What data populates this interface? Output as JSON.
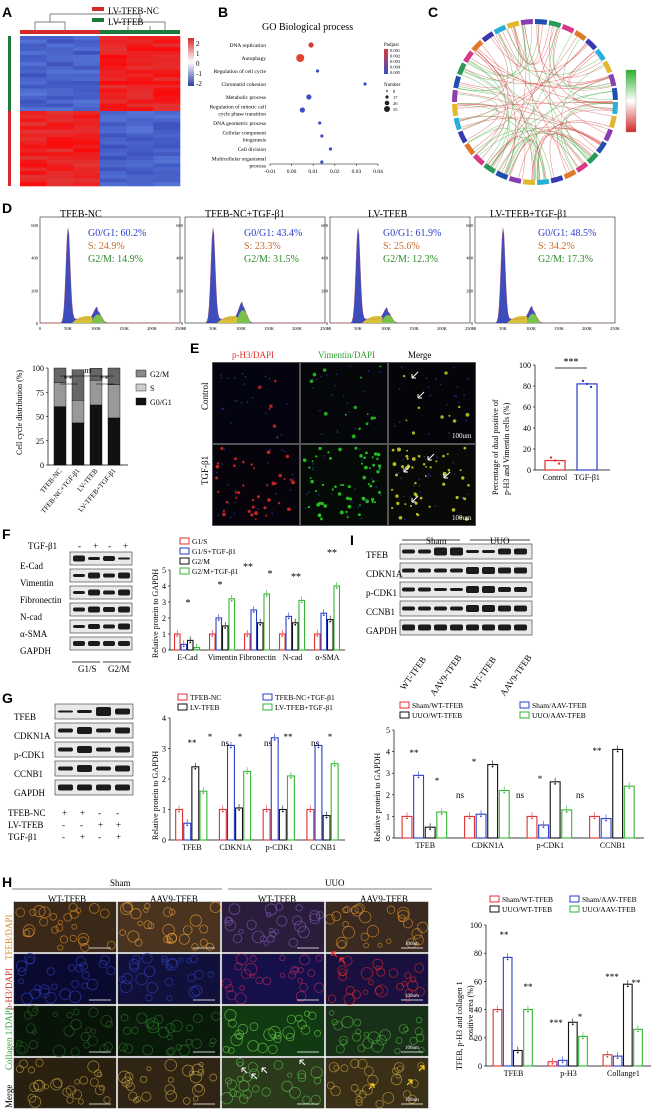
{
  "panel_labels": {
    "A": "A",
    "B": "B",
    "C": "C",
    "D": "D",
    "E": "E",
    "F": "F",
    "G": "G",
    "H": "H",
    "I": "I"
  },
  "a": {
    "legend": [
      "LV-TFEB-NC",
      "LV-TFEB"
    ],
    "scale": [
      "2",
      "1",
      "0",
      "-1",
      "-2"
    ]
  },
  "b": {
    "title": "GO Biological process",
    "terms": [
      "DNA replication",
      "Autophagy",
      "Regulation of cell cycle",
      "Chromatid cohesion",
      "Metabolic process",
      "Regulation of mitotic cell cycle phase transition",
      "DNA geometric process",
      "Cellular component biogenesis",
      "Cell division",
      "Multicellular organismal process"
    ],
    "xticks": [
      "-0.01",
      "0.00",
      "0.01",
      "0.02",
      "0.03",
      "0.04"
    ],
    "padj_title": "Padjust",
    "padj_ticks": [
      "0.001",
      "0.002",
      "0.003",
      "0.004",
      "0.005"
    ],
    "num_title": "Number",
    "num_vals": [
      "8",
      "17",
      "26",
      "35"
    ]
  },
  "d": {
    "panels": [
      {
        "title": "TFEB-NC",
        "g0": "G0/G1: 60.2%",
        "s": "S: 24.9%",
        "g2": "G2/M: 14.9%"
      },
      {
        "title": "TFEB-NC+TGF-β1",
        "g0": "G0/G1: 43.4%",
        "s": "S: 23.3%",
        "g2": "G2/M: 31.5%"
      },
      {
        "title": "LV-TFEB",
        "g0": "G0/G1: 61.9%",
        "s": "S: 25.6%",
        "g2": "G2/M: 12.3%"
      },
      {
        "title": "LV-TFEB+TGF-β1",
        "g0": "G0/G1: 48.5%",
        "s": "S: 34.2%",
        "g2": "G2/M: 17.3%"
      }
    ],
    "xticks": [
      "0",
      "50K",
      "100K",
      "150K",
      "200K",
      "250K"
    ],
    "yticks": [
      "0",
      "200",
      "400",
      "600"
    ]
  },
  "d2": {
    "ylabel": "Cell cycle distribution (%)",
    "yticks": [
      "0",
      "25",
      "50",
      "75",
      "100"
    ],
    "legend": [
      "G2/M",
      "S",
      "G0/G1"
    ],
    "cats": [
      "TFEB-NC",
      "TFEB-NC+TGF-β1",
      "LV-TFEB",
      "LV-TFEB+TGF-β1"
    ],
    "sig": [
      "ns",
      "**",
      "**"
    ]
  },
  "e": {
    "cols": [
      "p-H3/DAPI",
      "Vimentin/DAPI",
      "Merge"
    ],
    "rows": [
      "Control",
      "TGF-β1"
    ],
    "scale": "100um",
    "ylabel": "Percentage of dual positive of p-H3 and Vimentin cells (%)",
    "yticks": [
      "0",
      "20",
      "40",
      "60",
      "80",
      "100"
    ],
    "cats": [
      "Control",
      "TGF-β1"
    ],
    "sig": "***"
  },
  "f": {
    "treat": "TGF-β1",
    "signs": [
      "-",
      "+",
      "-",
      "+"
    ],
    "rows": [
      "E-Cad",
      "Vimentin",
      "Fibronectin",
      "N-cad",
      "α-SMA",
      "GAPDH"
    ],
    "groups": [
      "G1/S",
      "G2/M"
    ],
    "legend": [
      "G1/S",
      "G1/S+TGF-β1",
      "G2/M",
      "G2/M+TGF-β1"
    ],
    "ylabel": "Relative protein to GAPDH",
    "yticks": [
      "0",
      "1",
      "2",
      "3",
      "4",
      "5"
    ],
    "cats": [
      "E-Cad",
      "Vimentin",
      "Fibronectin",
      "N-cad",
      "α-SMA"
    ],
    "sig": "*",
    "sig2": "**"
  },
  "g": {
    "rows": [
      "TFEB",
      "CDKN1A",
      "p-CDK1",
      "CCNB1",
      "GAPDH"
    ],
    "conds": [
      "TFEB-NC",
      "LV-TFEB",
      "TGF-β1"
    ],
    "signs": [
      [
        "+",
        "+",
        "-",
        "-"
      ],
      [
        "-",
        "-",
        "+",
        "+"
      ],
      [
        "-",
        "+",
        "-",
        "+"
      ]
    ],
    "legend": [
      "TFEB-NC",
      "TFEB-NC+TGF-β1",
      "LV-TFEB",
      "LV-TFEB+TGF-β1"
    ],
    "ylabel": "Relative protein to GAPDH",
    "yticks": [
      "0",
      "1",
      "2",
      "3",
      "4"
    ],
    "cats": [
      "TFEB",
      "CDKN1A",
      "p-CDK1",
      "CCNB1"
    ],
    "sig": "*",
    "sig2": "**",
    "ns": "ns"
  },
  "i": {
    "headers": [
      "Sham",
      "UUO"
    ],
    "rows": [
      "TFEB",
      "CDKN1A",
      "p-CDK1",
      "CCNB1",
      "GAPDH"
    ],
    "lanes": [
      "WT-TFEB",
      "AAV9-TFEB",
      "WT-TFEB",
      "AAV9-TFEB"
    ],
    "legend": [
      "Sham/WT-TFEB",
      "Sham/AAV-TFEB",
      "UUO/WT-TFEB",
      "UUO/AAV-TFEB"
    ],
    "ylabel": "Relative protein to GAPDH",
    "yticks": [
      "0",
      "1",
      "2",
      "3",
      "4",
      "5"
    ],
    "cats": [
      "TFEB",
      "CDKN1A",
      "p-CDK1",
      "CCNB1"
    ],
    "sig": "*",
    "sig2": "**",
    "ns": "ns"
  },
  "h": {
    "headers": [
      "Sham",
      "UUO"
    ],
    "cols": [
      "WT-TFEB",
      "AAV9-TFEB",
      "WT-TFEB",
      "AAV9-TFEB"
    ],
    "rows": [
      "TFEB/DAPI",
      "p-H3/DAPI",
      "Collagen 1/DAPI",
      "Merge"
    ],
    "scale": "100um",
    "legend": [
      "Sham/WT-TFEB",
      "Sham/AAV-TFEB",
      "UUO/WT-TFEB",
      "UUO/AAV-TFEB"
    ],
    "ylabel": "TFEB, p-H3 and collagen 1 positive area (%)",
    "yticks": [
      "0",
      "20",
      "40",
      "60",
      "80",
      "100"
    ],
    "cats": [
      "TFEB",
      "p-H3",
      "Collange1"
    ],
    "sig": "*",
    "sig2": "**",
    "sig3": "***"
  },
  "chart_data": [
    {
      "type": "scatter",
      "title": "GO Biological process",
      "x_label": "",
      "categories": [
        "DNA replication",
        "Autophagy",
        "Regulation of cell cycle",
        "Chromatid cohesion",
        "Metabolic process",
        "Regulation of mitotic cell cycle phase transition",
        "DNA geometric process",
        "Cellular component biogenesis",
        "Cell division",
        "Multicellular organismal process"
      ],
      "x": [
        0.009,
        0.004,
        0.012,
        0.034,
        0.008,
        0.005,
        0.013,
        0.014,
        0.018,
        0.014
      ],
      "size": [
        17,
        35,
        8,
        8,
        17,
        17,
        8,
        8,
        8,
        8
      ],
      "xlim": [
        -0.01,
        0.04
      ]
    },
    {
      "type": "bar",
      "title": "",
      "ylabel": "Cell cycle distribution (%)",
      "categories": [
        "TFEB-NC",
        "TFEB-NC+TGF-β1",
        "LV-TFEB",
        "LV-TFEB+TGF-β1"
      ],
      "series": [
        {
          "name": "G0/G1",
          "values": [
            60.2,
            43.4,
            61.9,
            48.5
          ]
        },
        {
          "name": "S",
          "values": [
            24.9,
            23.3,
            25.6,
            34.2
          ]
        },
        {
          "name": "G2/M",
          "values": [
            14.9,
            31.5,
            12.3,
            17.3
          ]
        }
      ],
      "ylim": [
        0,
        100
      ],
      "stacked": true
    },
    {
      "type": "bar",
      "ylabel": "Percentage of dual positive of p-H3 and Vimentin cells (%)",
      "categories": [
        "Control",
        "TGF-β1"
      ],
      "values": [
        9,
        82
      ],
      "ylim": [
        0,
        100
      ]
    },
    {
      "type": "bar",
      "ylabel": "Relative protein to GAPDH",
      "categories": [
        "E-Cad",
        "Vimentin",
        "Fibronectin",
        "N-cad",
        "α-SMA"
      ],
      "series": [
        {
          "name": "G1/S",
          "values": [
            1,
            1,
            1,
            1,
            1
          ]
        },
        {
          "name": "G1/S+TGF-β1",
          "values": [
            0.35,
            2.0,
            2.5,
            2.1,
            2.3
          ]
        },
        {
          "name": "G2/M",
          "values": [
            0.6,
            1.5,
            1.7,
            1.7,
            1.9
          ]
        },
        {
          "name": "G2/M+TGF-β1",
          "values": [
            0.15,
            3.2,
            3.5,
            3.1,
            4.0
          ]
        }
      ],
      "ylim": [
        0,
        5
      ]
    },
    {
      "type": "bar",
      "ylabel": "Relative protein to GAPDH",
      "categories": [
        "TFEB",
        "CDKN1A",
        "p-CDK1",
        "CCNB1"
      ],
      "series": [
        {
          "name": "TFEB-NC",
          "values": [
            1,
            1,
            1,
            1
          ]
        },
        {
          "name": "TFEB-NC+TGF-β1",
          "values": [
            0.55,
            3.1,
            3.35,
            3.1
          ]
        },
        {
          "name": "LV-TFEB",
          "values": [
            2.4,
            1.05,
            1.0,
            0.8
          ]
        },
        {
          "name": "LV-TFEB+TGF-β1",
          "values": [
            1.6,
            2.25,
            2.1,
            2.5
          ]
        }
      ],
      "ylim": [
        0,
        4
      ]
    },
    {
      "type": "bar",
      "ylabel": "Relative protein to GAPDH",
      "categories": [
        "TFEB",
        "CDKN1A",
        "p-CDK1",
        "CCNB1"
      ],
      "series": [
        {
          "name": "Sham/WT-TFEB",
          "values": [
            1,
            1,
            1,
            1
          ]
        },
        {
          "name": "Sham/AAV-TFEB",
          "values": [
            2.9,
            1.1,
            0.6,
            0.9
          ]
        },
        {
          "name": "UUO/WT-TFEB",
          "values": [
            0.5,
            3.4,
            2.6,
            4.1
          ]
        },
        {
          "name": "UUO/AAV-TFEB",
          "values": [
            1.2,
            2.2,
            1.3,
            2.4
          ]
        }
      ],
      "ylim": [
        0,
        5
      ]
    },
    {
      "type": "bar",
      "ylabel": "TFEB, p-H3 and collagen 1 positive area (%)",
      "categories": [
        "TFEB",
        "p-H3",
        "Collange1"
      ],
      "series": [
        {
          "name": "Sham/WT-TFEB",
          "values": [
            40,
            3,
            8
          ]
        },
        {
          "name": "Sham/AAV-TFEB",
          "values": [
            77,
            4,
            7
          ]
        },
        {
          "name": "UUO/WT-TFEB",
          "values": [
            11,
            31,
            58
          ]
        },
        {
          "name": "UUO/AAV-TFEB",
          "values": [
            40,
            21,
            26
          ]
        }
      ],
      "ylim": [
        0,
        100
      ]
    }
  ],
  "colors": {
    "red": "#e03030",
    "blue": "#2a3ec8",
    "black": "#111111",
    "green": "#33b633",
    "heat_red": "#d42a2a",
    "heat_blue": "#2c3f9e"
  }
}
